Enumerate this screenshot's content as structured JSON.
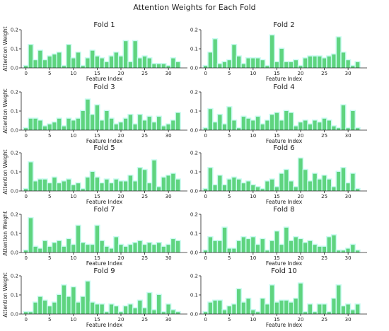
{
  "figure": {
    "title": "Attention Weights for Each Fold"
  },
  "colors": {
    "bar": "#5fd47f",
    "halo": "#c8fbf1",
    "axis": "#222222"
  },
  "chart_data": [
    {
      "type": "bar",
      "title": "Fold 1",
      "xlabel": "Feature Index",
      "ylabel": "Attention Weight",
      "xlim": [
        -1,
        34
      ],
      "ylim": [
        0,
        0.2
      ],
      "yticks": [
        {
          "v": 0.0,
          "label": "0.0"
        },
        {
          "v": 0.1,
          "label": "0.1"
        },
        {
          "v": 0.2,
          "label": "0.2"
        }
      ],
      "xticks": [
        {
          "v": 0,
          "label": "0"
        },
        {
          "v": 5,
          "label": "5"
        },
        {
          "v": 10,
          "label": "10"
        },
        {
          "v": 15,
          "label": "15"
        },
        {
          "v": 20,
          "label": "20"
        },
        {
          "v": 25,
          "label": "25"
        },
        {
          "v": 30,
          "label": "30"
        }
      ],
      "values": [
        0.01,
        0.12,
        0.04,
        0.09,
        0.04,
        0.06,
        0.07,
        0.08,
        0.01,
        0.12,
        0.05,
        0.08,
        0.01,
        0.05,
        0.09,
        0.06,
        0.05,
        0.03,
        0.06,
        0.08,
        0.06,
        0.14,
        0.03,
        0.14,
        0.05,
        0.06,
        0.05,
        0.02,
        0.02,
        0.02,
        0.01,
        0.05,
        0.03
      ]
    },
    {
      "type": "bar",
      "title": "Fold 2",
      "xlabel": "Feature Index",
      "ylabel": "",
      "xlim": [
        -1,
        34
      ],
      "ylim": [
        0,
        0.2
      ],
      "yticks": [
        {
          "v": 0.0,
          "label": "0.0"
        },
        {
          "v": 0.1,
          "label": "0.1"
        },
        {
          "v": 0.2,
          "label": "0.2"
        }
      ],
      "xticks": [
        {
          "v": 0,
          "label": "0"
        },
        {
          "v": 5,
          "label": "5"
        },
        {
          "v": 10,
          "label": "10"
        },
        {
          "v": 15,
          "label": "15"
        },
        {
          "v": 20,
          "label": "20"
        },
        {
          "v": 25,
          "label": "25"
        },
        {
          "v": 30,
          "label": "30"
        }
      ],
      "values": [
        0.01,
        0.08,
        0.15,
        0.02,
        0.03,
        0.04,
        0.12,
        0.06,
        0.02,
        0.05,
        0.05,
        0.05,
        0.04,
        0.01,
        0.17,
        0.03,
        0.1,
        0.03,
        0.03,
        0.04,
        0.01,
        0.05,
        0.06,
        0.06,
        0.06,
        0.05,
        0.06,
        0.07,
        0.16,
        0.08,
        0.04,
        0.01,
        0.03
      ]
    },
    {
      "type": "bar",
      "title": "Fold 3",
      "xlabel": "Feature Index",
      "ylabel": "Attention Weight",
      "xlim": [
        -1,
        34
      ],
      "ylim": [
        0,
        0.2
      ],
      "yticks": [
        {
          "v": 0.0,
          "label": "0.0"
        },
        {
          "v": 0.1,
          "label": "0.1"
        },
        {
          "v": 0.2,
          "label": "0.2"
        }
      ],
      "xticks": [
        {
          "v": 0,
          "label": "0"
        },
        {
          "v": 5,
          "label": "5"
        },
        {
          "v": 10,
          "label": "10"
        },
        {
          "v": 15,
          "label": "15"
        },
        {
          "v": 20,
          "label": "20"
        },
        {
          "v": 25,
          "label": "25"
        },
        {
          "v": 30,
          "label": "30"
        }
      ],
      "values": [
        0.01,
        0.06,
        0.06,
        0.05,
        0.02,
        0.03,
        0.04,
        0.06,
        0.02,
        0.06,
        0.05,
        0.06,
        0.1,
        0.16,
        0.08,
        0.13,
        0.05,
        0.1,
        0.06,
        0.03,
        0.04,
        0.06,
        0.08,
        0.03,
        0.08,
        0.05,
        0.07,
        0.04,
        0.07,
        0.02,
        0.03,
        0.05,
        0.09
      ]
    },
    {
      "type": "bar",
      "title": "Fold 4",
      "xlabel": "Feature Index",
      "ylabel": "",
      "xlim": [
        -1,
        34
      ],
      "ylim": [
        0,
        0.2
      ],
      "yticks": [
        {
          "v": 0.0,
          "label": "0.0"
        },
        {
          "v": 0.1,
          "label": "0.1"
        },
        {
          "v": 0.2,
          "label": "0.2"
        }
      ],
      "xticks": [
        {
          "v": 0,
          "label": "0"
        },
        {
          "v": 5,
          "label": "5"
        },
        {
          "v": 10,
          "label": "10"
        },
        {
          "v": 15,
          "label": "15"
        },
        {
          "v": 20,
          "label": "20"
        },
        {
          "v": 25,
          "label": "25"
        },
        {
          "v": 30,
          "label": "30"
        }
      ],
      "values": [
        0.01,
        0.11,
        0.04,
        0.08,
        0.03,
        0.12,
        0.05,
        0.01,
        0.07,
        0.06,
        0.05,
        0.07,
        0.03,
        0.05,
        0.08,
        0.09,
        0.05,
        0.1,
        0.09,
        0.02,
        0.04,
        0.05,
        0.03,
        0.05,
        0.04,
        0.06,
        0.05,
        0.02,
        0.01,
        0.13,
        0.01,
        0.1,
        0.01
      ]
    },
    {
      "type": "bar",
      "title": "Fold 5",
      "xlabel": "Feature Index",
      "ylabel": "Attention Weight",
      "xlim": [
        -1,
        34
      ],
      "ylim": [
        0,
        0.2
      ],
      "yticks": [
        {
          "v": 0.0,
          "label": "0.0"
        },
        {
          "v": 0.1,
          "label": "0.1"
        },
        {
          "v": 0.2,
          "label": "0.2"
        }
      ],
      "xticks": [
        {
          "v": 0,
          "label": "0"
        },
        {
          "v": 5,
          "label": "5"
        },
        {
          "v": 10,
          "label": "10"
        },
        {
          "v": 15,
          "label": "15"
        },
        {
          "v": 20,
          "label": "20"
        },
        {
          "v": 25,
          "label": "25"
        },
        {
          "v": 30,
          "label": "30"
        }
      ],
      "values": [
        0.01,
        0.15,
        0.05,
        0.06,
        0.06,
        0.04,
        0.07,
        0.04,
        0.05,
        0.06,
        0.03,
        0.04,
        0.01,
        0.07,
        0.1,
        0.07,
        0.04,
        0.06,
        0.04,
        0.06,
        0.05,
        0.05,
        0.08,
        0.05,
        0.12,
        0.11,
        0.04,
        0.16,
        0.02,
        0.07,
        0.08,
        0.09,
        0.06
      ]
    },
    {
      "type": "bar",
      "title": "Fold 6",
      "xlabel": "Feature Index",
      "ylabel": "",
      "xlim": [
        -1,
        34
      ],
      "ylim": [
        0,
        0.2
      ],
      "yticks": [
        {
          "v": 0.0,
          "label": "0.0"
        },
        {
          "v": 0.1,
          "label": "0.1"
        },
        {
          "v": 0.2,
          "label": "0.2"
        }
      ],
      "xticks": [
        {
          "v": 0,
          "label": "0"
        },
        {
          "v": 5,
          "label": "5"
        },
        {
          "v": 10,
          "label": "10"
        },
        {
          "v": 15,
          "label": "15"
        },
        {
          "v": 20,
          "label": "20"
        },
        {
          "v": 25,
          "label": "25"
        },
        {
          "v": 30,
          "label": "30"
        }
      ],
      "values": [
        0.01,
        0.12,
        0.03,
        0.08,
        0.03,
        0.06,
        0.07,
        0.06,
        0.04,
        0.05,
        0.03,
        0.02,
        0.01,
        0.05,
        0.06,
        0.02,
        0.09,
        0.11,
        0.05,
        0.02,
        0.17,
        0.11,
        0.05,
        0.09,
        0.06,
        0.08,
        0.06,
        0.02,
        0.1,
        0.12,
        0.04,
        0.09,
        0.01
      ]
    },
    {
      "type": "bar",
      "title": "Fold 7",
      "xlabel": "Feature Index",
      "ylabel": "Attention Weight",
      "xlim": [
        -1,
        34
      ],
      "ylim": [
        0,
        0.2
      ],
      "yticks": [
        {
          "v": 0.0,
          "label": "0.0"
        },
        {
          "v": 0.1,
          "label": "0.1"
        },
        {
          "v": 0.2,
          "label": "0.2"
        }
      ],
      "xticks": [
        {
          "v": 0,
          "label": "0"
        },
        {
          "v": 5,
          "label": "5"
        },
        {
          "v": 10,
          "label": "10"
        },
        {
          "v": 15,
          "label": "15"
        },
        {
          "v": 20,
          "label": "20"
        },
        {
          "v": 25,
          "label": "25"
        },
        {
          "v": 30,
          "label": "30"
        }
      ],
      "values": [
        0.01,
        0.18,
        0.03,
        0.02,
        0.06,
        0.03,
        0.05,
        0.06,
        0.03,
        0.07,
        0.04,
        0.14,
        0.05,
        0.04,
        0.04,
        0.14,
        0.06,
        0.03,
        0.02,
        0.08,
        0.04,
        0.03,
        0.04,
        0.05,
        0.06,
        0.04,
        0.05,
        0.04,
        0.05,
        0.03,
        0.04,
        0.07,
        0.06
      ]
    },
    {
      "type": "bar",
      "title": "Fold 8",
      "xlabel": "Feature Index",
      "ylabel": "",
      "xlim": [
        -1,
        34
      ],
      "ylim": [
        0,
        0.2
      ],
      "yticks": [
        {
          "v": 0.0,
          "label": "0.0"
        },
        {
          "v": 0.1,
          "label": "0.1"
        },
        {
          "v": 0.2,
          "label": "0.2"
        }
      ],
      "xticks": [
        {
          "v": 0,
          "label": "0"
        },
        {
          "v": 5,
          "label": "5"
        },
        {
          "v": 10,
          "label": "10"
        },
        {
          "v": 15,
          "label": "15"
        },
        {
          "v": 20,
          "label": "20"
        },
        {
          "v": 25,
          "label": "25"
        },
        {
          "v": 30,
          "label": "30"
        }
      ],
      "values": [
        0.01,
        0.08,
        0.06,
        0.06,
        0.13,
        0.02,
        0.02,
        0.06,
        0.08,
        0.07,
        0.08,
        0.04,
        0.07,
        0.01,
        0.06,
        0.11,
        0.04,
        0.13,
        0.06,
        0.08,
        0.07,
        0.05,
        0.06,
        0.04,
        0.03,
        0.03,
        0.08,
        0.09,
        0.01,
        0.01,
        0.02,
        0.04,
        0.01
      ]
    },
    {
      "type": "bar",
      "title": "Fold 9",
      "xlabel": "Feature Index",
      "ylabel": "Attention Weight",
      "xlim": [
        -1,
        34
      ],
      "ylim": [
        0,
        0.2
      ],
      "yticks": [
        {
          "v": 0.0,
          "label": "0.0"
        },
        {
          "v": 0.1,
          "label": "0.1"
        },
        {
          "v": 0.2,
          "label": "0.2"
        }
      ],
      "xticks": [
        {
          "v": 0,
          "label": "0"
        },
        {
          "v": 5,
          "label": "5"
        },
        {
          "v": 10,
          "label": "10"
        },
        {
          "v": 15,
          "label": "15"
        },
        {
          "v": 20,
          "label": "20"
        },
        {
          "v": 25,
          "label": "25"
        },
        {
          "v": 30,
          "label": "30"
        }
      ],
      "values": [
        0.01,
        0.01,
        0.06,
        0.09,
        0.07,
        0.04,
        0.06,
        0.1,
        0.15,
        0.09,
        0.14,
        0.06,
        0.09,
        0.17,
        0.06,
        0.05,
        0.05,
        0.01,
        0.05,
        0.04,
        0.01,
        0.04,
        0.05,
        0.03,
        0.07,
        0.03,
        0.11,
        0.02,
        0.1,
        0.01,
        0.05,
        0.02,
        0.01
      ]
    },
    {
      "type": "bar",
      "title": "Fold 10",
      "xlabel": "Feature Index",
      "ylabel": "",
      "xlim": [
        -1,
        34
      ],
      "ylim": [
        0,
        0.2
      ],
      "yticks": [
        {
          "v": 0.0,
          "label": "0.0"
        },
        {
          "v": 0.1,
          "label": "0.1"
        },
        {
          "v": 0.2,
          "label": "0.2"
        }
      ],
      "xticks": [
        {
          "v": 0,
          "label": "0"
        },
        {
          "v": 5,
          "label": "5"
        },
        {
          "v": 10,
          "label": "10"
        },
        {
          "v": 15,
          "label": "15"
        },
        {
          "v": 20,
          "label": "20"
        },
        {
          "v": 25,
          "label": "25"
        },
        {
          "v": 30,
          "label": "30"
        }
      ],
      "values": [
        0.01,
        0.06,
        0.07,
        0.07,
        0.02,
        0.04,
        0.05,
        0.13,
        0.06,
        0.08,
        0.02,
        0.01,
        0.08,
        0.05,
        0.15,
        0.06,
        0.07,
        0.07,
        0.06,
        0.08,
        0.16,
        0.01,
        0.05,
        0.01,
        0.05,
        0.05,
        0.01,
        0.08,
        0.15,
        0.04,
        0.05,
        0.02,
        0.05
      ]
    }
  ]
}
